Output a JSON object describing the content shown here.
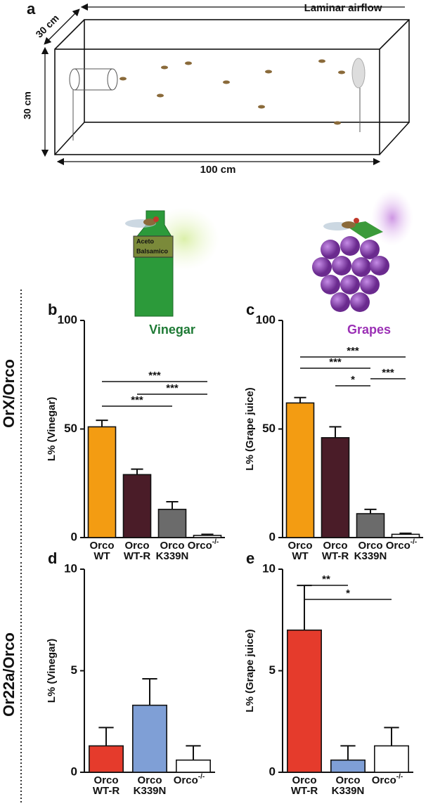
{
  "diagram": {
    "panel": "a",
    "airflow": "Laminar airflow",
    "depth": "30 cm",
    "height": "30 cm",
    "length": "100 cm",
    "bottle_label": [
      "Aceto",
      "Balsamico"
    ]
  },
  "row_labels": [
    "OrX/Orco",
    "Or22a/Orco"
  ],
  "chart_data": [
    {
      "type": "bar",
      "panel": "b",
      "title": "Vinegar",
      "title_color": "#1e7a35",
      "ylabel": "L% (Vinegar)",
      "categories": [
        [
          "Orco",
          "WT"
        ],
        [
          "Orco",
          "WT-R"
        ],
        [
          "Orco",
          "K339N"
        ],
        [
          "Orco",
          "-/-"
        ]
      ],
      "values": [
        51,
        29,
        13,
        1
      ],
      "errors": [
        3,
        2.5,
        3.5,
        0.5
      ],
      "colors": [
        "#f39c12",
        "#4a1c28",
        "#6b6b6b",
        "#ffffff"
      ],
      "ylim": [
        0,
        100
      ],
      "yticks": [
        0,
        50,
        100
      ],
      "significance": [
        {
          "pair": [
            0,
            3
          ],
          "label": "***"
        },
        {
          "pair": [
            1,
            3
          ],
          "label": "***"
        },
        {
          "pair": [
            0,
            2
          ],
          "label": "***"
        }
      ]
    },
    {
      "type": "bar",
      "panel": "c",
      "title": "Grapes",
      "title_color": "#9b30b5",
      "ylabel": "L% (Grape juice)",
      "categories": [
        [
          "Orco",
          "WT"
        ],
        [
          "Orco",
          "WT-R"
        ],
        [
          "Orco",
          "K339N"
        ],
        [
          "Orco",
          "-/-"
        ]
      ],
      "values": [
        62,
        46,
        11,
        1.5
      ],
      "errors": [
        2.5,
        5,
        2,
        0.5
      ],
      "colors": [
        "#f39c12",
        "#4a1c28",
        "#6b6b6b",
        "#ffffff"
      ],
      "ylim": [
        0,
        100
      ],
      "yticks": [
        0,
        50,
        100
      ],
      "significance": [
        {
          "pair": [
            0,
            3
          ],
          "label": "***"
        },
        {
          "pair": [
            0,
            2
          ],
          "label": "***"
        },
        {
          "pair": [
            2,
            3
          ],
          "label": "***"
        },
        {
          "pair": [
            1,
            2
          ],
          "label": "*"
        }
      ]
    },
    {
      "type": "bar",
      "panel": "d",
      "ylabel": "L% (Vinegar)",
      "categories": [
        [
          "Orco",
          "WT-R"
        ],
        [
          "Orco",
          "K339N"
        ],
        [
          "Orco",
          "-/-"
        ]
      ],
      "values": [
        1.3,
        3.3,
        0.6
      ],
      "errors": [
        0.9,
        1.3,
        0.7
      ],
      "colors": [
        "#e53b2c",
        "#7f9fd6",
        "#ffffff"
      ],
      "ylim": [
        0,
        10
      ],
      "yticks": [
        0,
        5,
        10
      ],
      "significance": []
    },
    {
      "type": "bar",
      "panel": "e",
      "ylabel": "L% (Grape juice)",
      "categories": [
        [
          "Orco",
          "WT-R"
        ],
        [
          "Orco",
          "K339N"
        ],
        [
          "Orco",
          "-/-"
        ]
      ],
      "values": [
        7,
        0.6,
        1.3
      ],
      "errors": [
        2.2,
        0.7,
        0.9
      ],
      "colors": [
        "#e53b2c",
        "#7f9fd6",
        "#ffffff"
      ],
      "ylim": [
        0,
        10
      ],
      "yticks": [
        0,
        5,
        10
      ],
      "significance": [
        {
          "pair": [
            0,
            1
          ],
          "label": "**"
        },
        {
          "pair": [
            0,
            2
          ],
          "label": "*"
        }
      ]
    }
  ]
}
